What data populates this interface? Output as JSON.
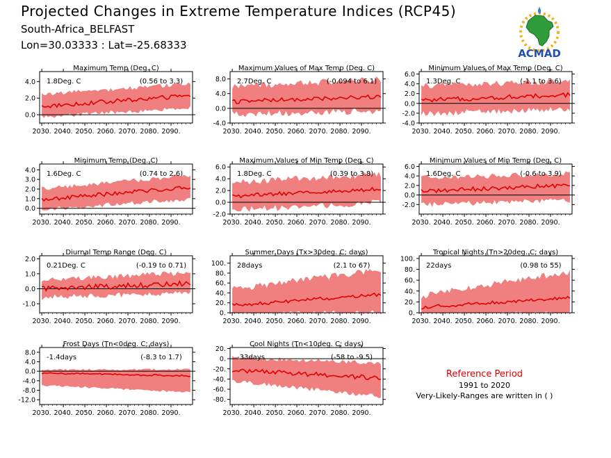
{
  "header": {
    "title": "Projected Changes in Extreme Temperature Indices (RCP45)",
    "location": "South-Africa_BELFAST",
    "coords": "Lon=30.03333 : Lat=-25.68333"
  },
  "logo": {
    "text": "ACMAD",
    "icon": "africa-map-sun-icon"
  },
  "reference": {
    "title": "Reference Period",
    "period": "1991 to 2020",
    "note": "Very-Likely-Ranges are written in ( )"
  },
  "colors": {
    "band": "#f08080",
    "line": "#e00000",
    "ref_title": "#e00000"
  },
  "chart_data": [
    {
      "type": "line",
      "title": "Maximum Temp (Deg. C)",
      "change": "1.8Deg. C",
      "range": "(0.56 to 3.3)",
      "ylim": [
        -1.0,
        5.2
      ],
      "yticks": [
        0.0,
        2.0,
        4.0
      ],
      "ytick_labels": [
        "0.0",
        "2.0",
        "4.0"
      ],
      "xticks": [
        2030,
        2040,
        2050,
        2060,
        2070,
        2080,
        2090
      ],
      "xtick_labels": [
        "2030.",
        "2040.",
        "2050.",
        "2060.",
        "2070.",
        "2080.",
        "2090."
      ],
      "xlim": [
        2029,
        2100
      ],
      "zero_line": true,
      "series": {
        "start": 1.0,
        "end": 2.3,
        "noise": 0.25,
        "band_lo_start": 0.0,
        "band_lo_end": 1.1,
        "band_hi_start": 2.2,
        "band_hi_end": 3.5,
        "band_noise": 0.5
      }
    },
    {
      "type": "line",
      "title": "Maximum Values of Max Temp (Deg. C)",
      "change": "2.7Deg. C",
      "range": "(-0.094 to 6.1)",
      "ylim": [
        -4.0,
        10.0
      ],
      "yticks": [
        -4.0,
        0.0,
        4.0,
        8.0
      ],
      "ytick_labels": [
        "-4.0",
        "0.0",
        "4.0",
        "8.0"
      ],
      "xticks": [
        2030,
        2040,
        2050,
        2060,
        2070,
        2080,
        2090
      ],
      "xtick_labels": [
        "2030.",
        "2040.",
        "2050.",
        "2060.",
        "2070.",
        "2080.",
        "2090."
      ],
      "xlim": [
        2029,
        2100
      ],
      "zero_line": true,
      "series": {
        "start": 1.8,
        "end": 3.2,
        "noise": 0.6,
        "band_lo_start": -0.8,
        "band_lo_end": 0.3,
        "band_hi_start": 5.0,
        "band_hi_end": 7.0,
        "band_noise": 1.8
      }
    },
    {
      "type": "line",
      "title": "Minimum Values of Max Temp (Deg. C)",
      "change": "1.3Deg. C",
      "range": "(-1.1 to 3.6)",
      "ylim": [
        -4.0,
        6.5
      ],
      "yticks": [
        -4.0,
        -2.0,
        0.0,
        2.0,
        4.0,
        6.0
      ],
      "ytick_labels": [
        "-4.0",
        "-2.0",
        "0.0",
        "2.0",
        "4.0",
        "6.0"
      ],
      "xticks": [
        2030,
        2040,
        2050,
        2060,
        2070,
        2080,
        2090
      ],
      "xtick_labels": [
        "2030.",
        "2040.",
        "2050.",
        "2060.",
        "2070.",
        "2080.",
        "2090."
      ],
      "xlim": [
        2029,
        2100
      ],
      "zero_line": true,
      "series": {
        "start": 0.6,
        "end": 1.8,
        "noise": 0.45,
        "band_lo_start": -1.5,
        "band_lo_end": -0.5,
        "band_hi_start": 3.0,
        "band_hi_end": 4.0,
        "band_noise": 1.2
      }
    },
    {
      "type": "line",
      "title": "Minimum Temp (Deg. C)",
      "change": "1.6Deg. C",
      "range": "(0.74 to 2.6)",
      "ylim": [
        -0.6,
        4.6
      ],
      "yticks": [
        0.0,
        1.0,
        2.0,
        3.0,
        4.0
      ],
      "ytick_labels": [
        "0.0",
        "1.0",
        "2.0",
        "3.0",
        "4.0"
      ],
      "xticks": [
        2030,
        2040,
        2050,
        2060,
        2070,
        2080,
        2090
      ],
      "xtick_labels": [
        "2030.",
        "2040.",
        "2050.",
        "2060.",
        "2070.",
        "2080.",
        "2090."
      ],
      "xlim": [
        2029,
        2100
      ],
      "zero_line": true,
      "series": {
        "start": 0.9,
        "end": 2.2,
        "noise": 0.2,
        "band_lo_start": 0.1,
        "band_lo_end": 1.2,
        "band_hi_start": 1.8,
        "band_hi_end": 3.2,
        "band_noise": 0.45
      }
    },
    {
      "type": "line",
      "title": "Maximum Values of Min Temp (Deg. C)",
      "change": "1.8Deg. C",
      "range": "(0.39 to 3.8)",
      "ylim": [
        -2.0,
        6.5
      ],
      "yticks": [
        -2.0,
        0.0,
        2.0,
        4.0,
        6.0
      ],
      "ytick_labels": [
        "-2.0",
        "0.0",
        "2.0",
        "4.0",
        "6.0"
      ],
      "xticks": [
        2030,
        2040,
        2050,
        2060,
        2070,
        2080,
        2090
      ],
      "xtick_labels": [
        "2030.",
        "2040.",
        "2050.",
        "2060.",
        "2070.",
        "2080.",
        "2090."
      ],
      "xlim": [
        2029,
        2100
      ],
      "zero_line": true,
      "series": {
        "start": 1.0,
        "end": 2.3,
        "noise": 0.35,
        "band_lo_start": -0.8,
        "band_lo_end": 0.5,
        "band_hi_start": 2.8,
        "band_hi_end": 4.2,
        "band_noise": 1.1
      }
    },
    {
      "type": "line",
      "title": "Minimum Values of Min Temp (Deg. C)",
      "change": "1.6Deg. C",
      "range": "(-0.6 to 3.9)",
      "ylim": [
        -4.0,
        6.5
      ],
      "yticks": [
        -2.0,
        0.0,
        2.0,
        4.0,
        6.0
      ],
      "ytick_labels": [
        "-2.0",
        "0.0",
        "2.0",
        "4.0",
        "6.0"
      ],
      "xticks": [
        2030,
        2040,
        2050,
        2060,
        2070,
        2080,
        2090
      ],
      "xtick_labels": [
        "2030.",
        "2040.",
        "2050.",
        "2060.",
        "2070.",
        "2080.",
        "2090."
      ],
      "xlim": [
        2029,
        2100
      ],
      "zero_line": true,
      "series": {
        "start": 0.8,
        "end": 2.1,
        "noise": 0.45,
        "band_lo_start": -1.5,
        "band_lo_end": -0.5,
        "band_hi_start": 3.0,
        "band_hi_end": 4.0,
        "band_noise": 1.1
      }
    },
    {
      "type": "line",
      "title": "Diurnal Temp Range (Deg. C)",
      "change": "0.21Deg. C",
      "range": "(-0.19 to 0.71)",
      "ylim": [
        -1.6,
        2.2
      ],
      "yticks": [
        -1.0,
        0.0,
        1.0,
        2.0
      ],
      "ytick_labels": [
        "-1.0",
        "0.0",
        "1.0",
        "2.0"
      ],
      "xticks": [
        2030,
        2040,
        2050,
        2060,
        2070,
        2080,
        2090
      ],
      "xtick_labels": [
        "2030.",
        "2040.",
        "2050.",
        "2060.",
        "2070.",
        "2080.",
        "2090."
      ],
      "xlim": [
        2029,
        2100
      ],
      "zero_line": true,
      "series": {
        "start": 0.0,
        "end": 0.35,
        "noise": 0.18,
        "band_lo_start": -0.4,
        "band_lo_end": -0.1,
        "band_hi_start": 0.4,
        "band_hi_end": 0.9,
        "band_noise": 0.35
      }
    },
    {
      "type": "line",
      "title": "Summer Days (Tx>30deg. C; days)",
      "change": "28days",
      "range": "(2.1 to 67)",
      "ylim": [
        0,
        115
      ],
      "yticks": [
        0,
        20,
        40,
        60,
        80,
        100
      ],
      "ytick_labels": [
        "0.",
        "20.",
        "40.",
        "60.",
        "80.",
        "100."
      ],
      "xticks": [
        2030,
        2040,
        2050,
        2060,
        2070,
        2080,
        2090
      ],
      "xtick_labels": [
        "2030.",
        "2040.",
        "2050.",
        "2060.",
        "2070.",
        "2080.",
        "2090."
      ],
      "xlim": [
        2029,
        2100
      ],
      "zero_line": false,
      "series": {
        "start": 15,
        "end": 37,
        "noise": 3.5,
        "band_lo_start": 2,
        "band_lo_end": 6,
        "band_hi_start": 40,
        "band_hi_end": 80,
        "band_noise": 14
      }
    },
    {
      "type": "line",
      "title": "Tropical Nights (Tn>20deg. C; days)",
      "change": "22days",
      "range": "(0.98 to 55)",
      "ylim": [
        0,
        105
      ],
      "yticks": [
        0,
        20,
        40,
        60,
        80,
        100
      ],
      "ytick_labels": [
        "0.",
        "20.",
        "40.",
        "60.",
        "80.",
        "100."
      ],
      "xticks": [
        2030,
        2040,
        2050,
        2060,
        2070,
        2080,
        2090
      ],
      "xtick_labels": [
        "2030.",
        "2040.",
        "2050.",
        "2060.",
        "2070.",
        "2080.",
        "2090."
      ],
      "xlim": [
        2029,
        2100
      ],
      "zero_line": false,
      "series": {
        "start": 10,
        "end": 28,
        "noise": 3.0,
        "band_lo_start": 1,
        "band_lo_end": 3,
        "band_hi_start": 25,
        "band_hi_end": 70,
        "band_noise": 12
      }
    },
    {
      "type": "line",
      "title": "Frost Days (Tn<0deg. C; days)",
      "change": "-1.4days",
      "range": "(-8.3 to 1.7)",
      "ylim": [
        -14,
        10
      ],
      "yticks": [
        -12,
        -8,
        -4,
        0,
        4,
        8
      ],
      "ytick_labels": [
        "-12.0",
        "-8.0",
        "-4.0",
        "0.0",
        "4.0",
        "8.0"
      ],
      "xticks": [
        2030,
        2040,
        2050,
        2060,
        2070,
        2080,
        2090
      ],
      "xtick_labels": [
        "2030.",
        "2040.",
        "2050.",
        "2060.",
        "2070.",
        "2080.",
        "2090."
      ],
      "xlim": [
        2029,
        2100
      ],
      "zero_line": true,
      "series": {
        "start": -0.8,
        "end": -1.9,
        "noise": 0.35,
        "band_lo_start": -5.5,
        "band_lo_end": -8.5,
        "band_hi_start": 0.3,
        "band_hi_end": 0.4,
        "band_noise": 0.8
      }
    },
    {
      "type": "line",
      "title": "Cool Nights (Tn<10deg. C; days)",
      "change": "-33days",
      "range": "(-58 to -9.5)",
      "ylim": [
        -90,
        22
      ],
      "yticks": [
        -80,
        -60,
        -40,
        -20,
        0,
        20
      ],
      "ytick_labels": [
        "-80.",
        "-60.",
        "-40.",
        "-20.",
        "0.",
        "20."
      ],
      "xticks": [
        2030,
        2040,
        2050,
        2060,
        2070,
        2080,
        2090
      ],
      "xtick_labels": [
        "2030.",
        "2040.",
        "2050.",
        "2060.",
        "2070.",
        "2080.",
        "2090."
      ],
      "xlim": [
        2029,
        2100
      ],
      "zero_line": true,
      "series": {
        "start": -22,
        "end": -38,
        "noise": 4.5,
        "band_lo_start": -40,
        "band_lo_end": -70,
        "band_hi_start": -2,
        "band_hi_end": -12,
        "band_noise": 8
      }
    }
  ]
}
